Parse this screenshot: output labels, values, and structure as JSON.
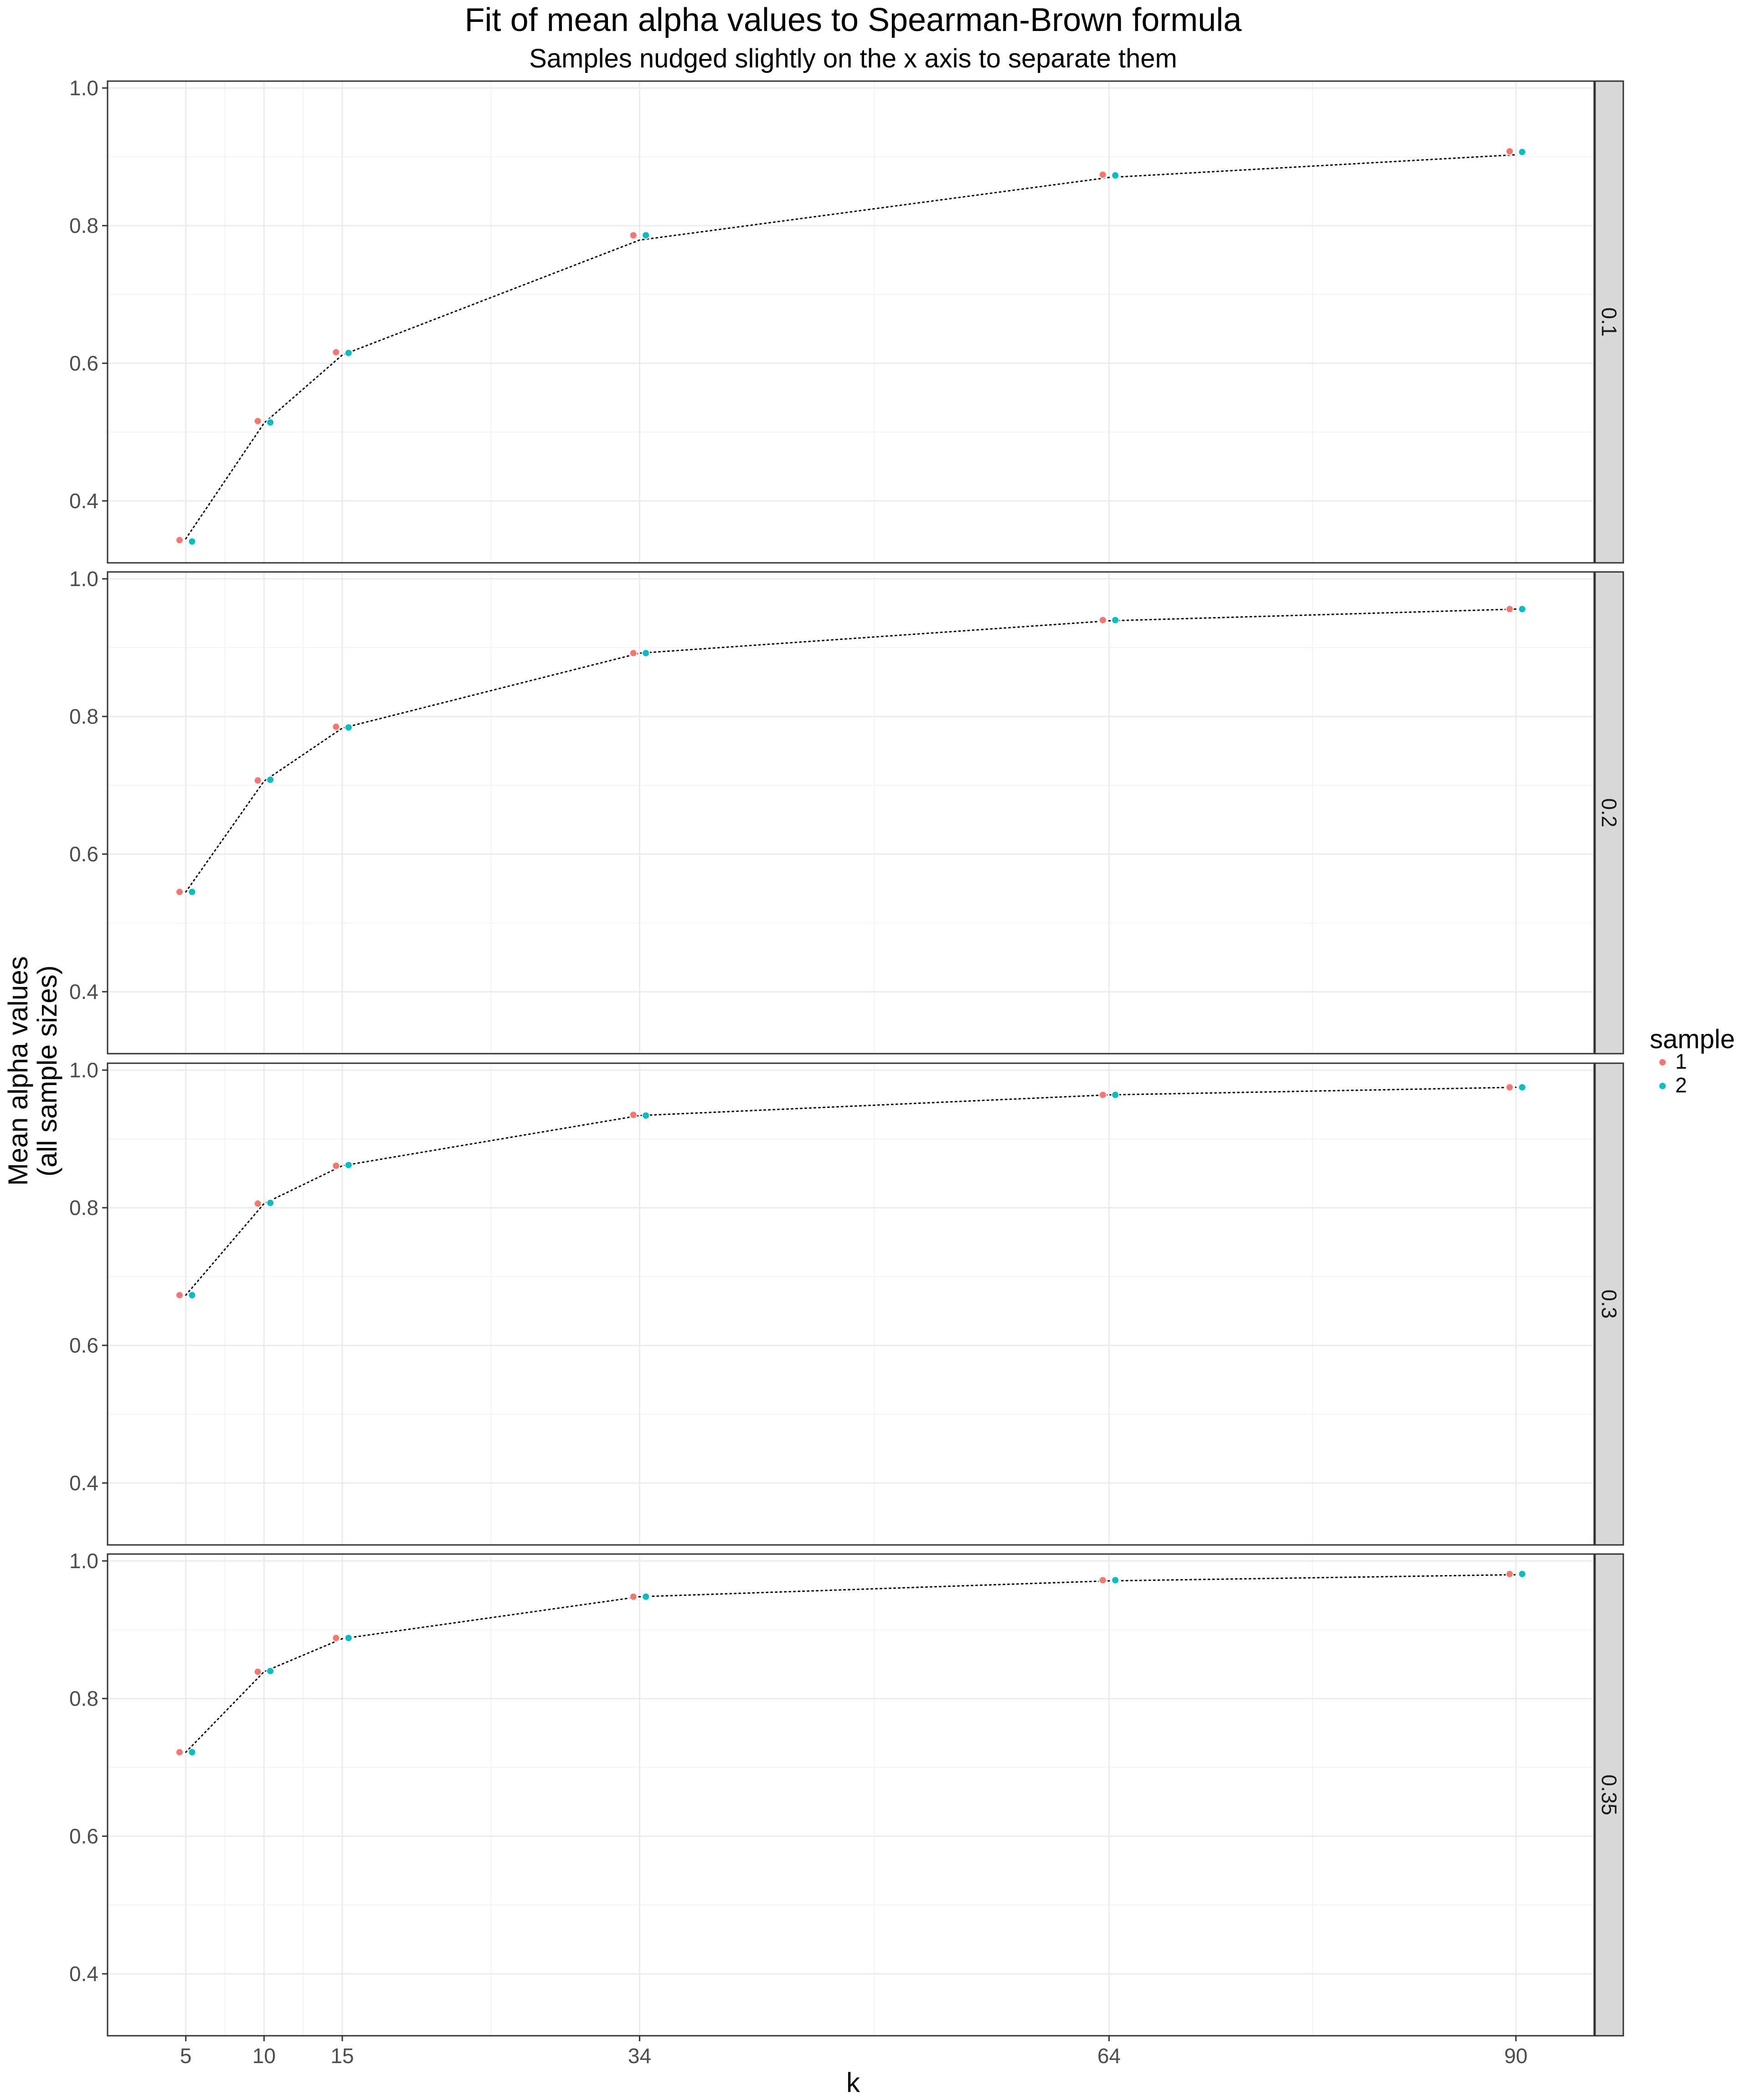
{
  "chart_data": {
    "type": "scatter",
    "title": "Fit of mean alpha values to Spearman-Brown formula",
    "subtitle": "Samples nudged slightly on the x axis to separate them",
    "xlabel": "k",
    "ylabel_line1": "Mean alpha values",
    "ylabel_line2": "(all sample sizes)",
    "x_ticks": [
      5,
      10,
      15,
      34,
      64,
      90
    ],
    "x_tick_labels": [
      "5",
      "10",
      "15",
      "34",
      "64",
      "90"
    ],
    "xlim": [
      0,
      95
    ],
    "y_ticks": [
      0.4,
      0.6,
      0.8,
      1.0
    ],
    "y_tick_labels": [
      "0.4",
      "0.6",
      "0.8",
      "1.0"
    ],
    "ylim": [
      0.31,
      1.01
    ],
    "grid": true,
    "legend": {
      "title": "sample",
      "placement": "right",
      "entries": [
        {
          "label": "1",
          "color": "#F8766D"
        },
        {
          "label": "2",
          "color": "#00BFC4"
        }
      ]
    },
    "fit_line_color": "#000000",
    "facets": [
      {
        "label": "0.1",
        "fit": {
          "x": [
            5,
            10,
            15,
            34,
            64,
            90
          ],
          "y": [
            0.345,
            0.513,
            0.612,
            0.779,
            0.87,
            0.903
          ]
        },
        "series": [
          {
            "name": "1",
            "x": [
              4.6,
              9.6,
              14.6,
              33.6,
              63.6,
              89.6
            ],
            "y": [
              0.343,
              0.516,
              0.616,
              0.786,
              0.874,
              0.908
            ]
          },
          {
            "name": "2",
            "x": [
              5.4,
              10.4,
              15.4,
              34.4,
              64.4,
              90.4
            ],
            "y": [
              0.341,
              0.514,
              0.615,
              0.786,
              0.873,
              0.907
            ]
          }
        ]
      },
      {
        "label": "0.2",
        "fit": {
          "x": [
            5,
            10,
            15,
            34,
            64,
            90
          ],
          "y": [
            0.545,
            0.706,
            0.783,
            0.892,
            0.939,
            0.956
          ]
        },
        "series": [
          {
            "name": "1",
            "x": [
              4.6,
              9.6,
              14.6,
              33.6,
              63.6,
              89.6
            ],
            "y": [
              0.545,
              0.707,
              0.785,
              0.892,
              0.94,
              0.956
            ]
          },
          {
            "name": "2",
            "x": [
              5.4,
              10.4,
              15.4,
              34.4,
              64.4,
              90.4
            ],
            "y": [
              0.545,
              0.708,
              0.784,
              0.892,
              0.94,
              0.956
            ]
          }
        ]
      },
      {
        "label": "0.3",
        "fit": {
          "x": [
            5,
            10,
            15,
            34,
            64,
            90
          ],
          "y": [
            0.673,
            0.806,
            0.861,
            0.934,
            0.964,
            0.975
          ]
        },
        "series": [
          {
            "name": "1",
            "x": [
              4.6,
              9.6,
              14.6,
              33.6,
              63.6,
              89.6
            ],
            "y": [
              0.673,
              0.806,
              0.861,
              0.935,
              0.964,
              0.975
            ]
          },
          {
            "name": "2",
            "x": [
              5.4,
              10.4,
              15.4,
              34.4,
              64.4,
              90.4
            ],
            "y": [
              0.673,
              0.807,
              0.862,
              0.934,
              0.964,
              0.975
            ]
          }
        ]
      },
      {
        "label": "0.35",
        "fit": {
          "x": [
            5,
            10,
            15,
            34,
            64,
            90
          ],
          "y": [
            0.722,
            0.839,
            0.887,
            0.948,
            0.971,
            0.98
          ]
        },
        "series": [
          {
            "name": "1",
            "x": [
              4.6,
              9.6,
              14.6,
              33.6,
              63.6,
              89.6
            ],
            "y": [
              0.722,
              0.839,
              0.888,
              0.948,
              0.972,
              0.981
            ]
          },
          {
            "name": "2",
            "x": [
              5.4,
              10.4,
              15.4,
              34.4,
              64.4,
              90.4
            ],
            "y": [
              0.722,
              0.84,
              0.888,
              0.948,
              0.972,
              0.981
            ]
          }
        ]
      }
    ]
  }
}
